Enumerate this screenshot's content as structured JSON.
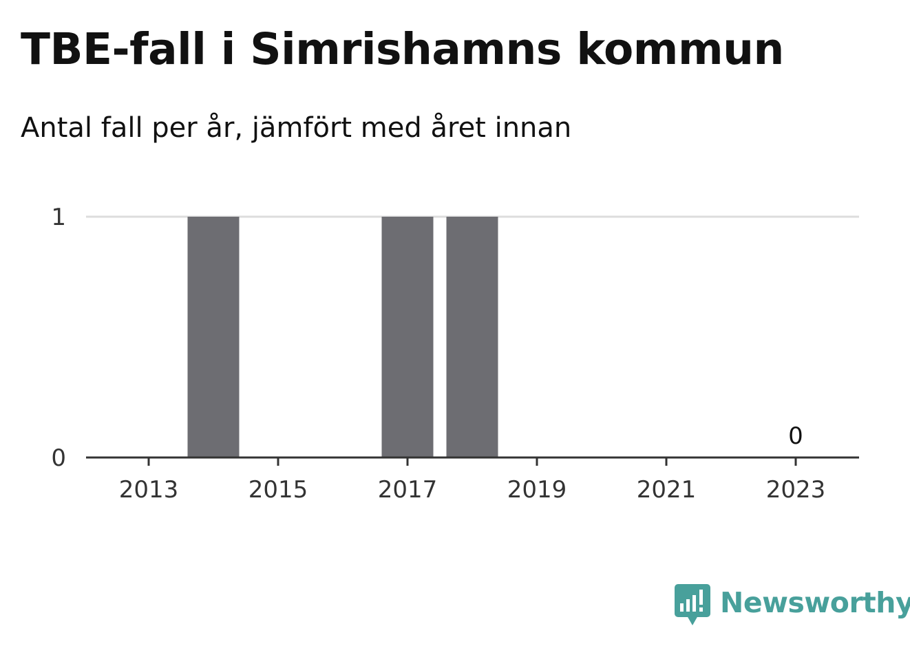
{
  "header": {
    "title": "TBE-fall i Simrishamns kommun",
    "subtitle": "Antal fall per år, jämfört med året innan"
  },
  "chart_data": {
    "type": "bar",
    "title": "TBE-fall i Simrishamns kommun",
    "subtitle": "Antal fall per år, jämfört med året innan",
    "xlabel": "",
    "ylabel": "",
    "categories": [
      "2013",
      "2014",
      "2015",
      "2016",
      "2017",
      "2018",
      "2019",
      "2020",
      "2021",
      "2022",
      "2023"
    ],
    "values": [
      0,
      1,
      0,
      0,
      1,
      1,
      0,
      0,
      0,
      0,
      0
    ],
    "x_tick_labels": [
      "2013",
      "2015",
      "2017",
      "2019",
      "2021",
      "2023"
    ],
    "y_tick_labels": [
      "0",
      "1"
    ],
    "ylim": [
      0,
      1
    ],
    "data_labels": [
      {
        "category": "2023",
        "text": "0"
      }
    ],
    "grid": true,
    "legend": "none",
    "bar_color": "#6d6d72",
    "grid_color": "#dddddd",
    "axis_color": "#333333"
  },
  "brand": {
    "name": "Newsworthy",
    "icon": "newsworthy-logo-icon",
    "color": "#48a09b"
  }
}
